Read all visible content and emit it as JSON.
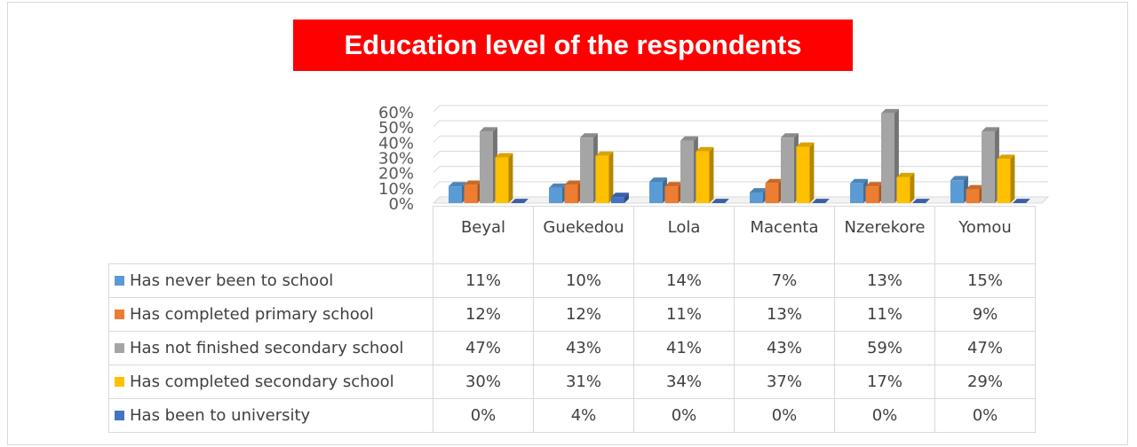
{
  "chart_data": {
    "type": "bar3d",
    "title": "Education level of the respondents",
    "categories": [
      "Beyal",
      "Guekedou",
      "Lola",
      "Macenta",
      "Nzerekore",
      "Yomou"
    ],
    "series": [
      {
        "name": "Has never been to school",
        "color": "#5b9bd5",
        "values": [
          11,
          10,
          14,
          7,
          13,
          15
        ],
        "value_labels": [
          "11%",
          "10%",
          "14%",
          "7%",
          "13%",
          "15%"
        ]
      },
      {
        "name": "Has completed primary school",
        "color": "#ed7d31",
        "values": [
          12,
          12,
          11,
          13,
          11,
          9
        ],
        "value_labels": [
          "12%",
          "12%",
          "11%",
          "13%",
          "11%",
          "9%"
        ]
      },
      {
        "name": "Has not finished secondary school",
        "color": "#a5a5a5",
        "values": [
          47,
          43,
          41,
          43,
          59,
          47
        ],
        "value_labels": [
          "47%",
          "43%",
          "41%",
          "43%",
          "59%",
          "47%"
        ]
      },
      {
        "name": "Has completed secondary school",
        "color": "#ffc000",
        "values": [
          30,
          31,
          34,
          37,
          17,
          29
        ],
        "value_labels": [
          "30%",
          "31%",
          "34%",
          "37%",
          "17%",
          "29%"
        ]
      },
      {
        "name": "Has been to university",
        "color": "#4472c4",
        "values": [
          0,
          4,
          0,
          0,
          0,
          0
        ],
        "value_labels": [
          "0%",
          "4%",
          "0%",
          "0%",
          "0%",
          "0%"
        ]
      }
    ],
    "ylim": [
      0,
      60
    ],
    "yticks": [
      {
        "value": 0,
        "label": "0%"
      },
      {
        "value": 10,
        "label": "10%"
      },
      {
        "value": 20,
        "label": "20%"
      },
      {
        "value": 30,
        "label": "30%"
      },
      {
        "value": 40,
        "label": "40%"
      },
      {
        "value": 50,
        "label": "50%"
      },
      {
        "value": 60,
        "label": "60%"
      }
    ],
    "grid": true
  }
}
